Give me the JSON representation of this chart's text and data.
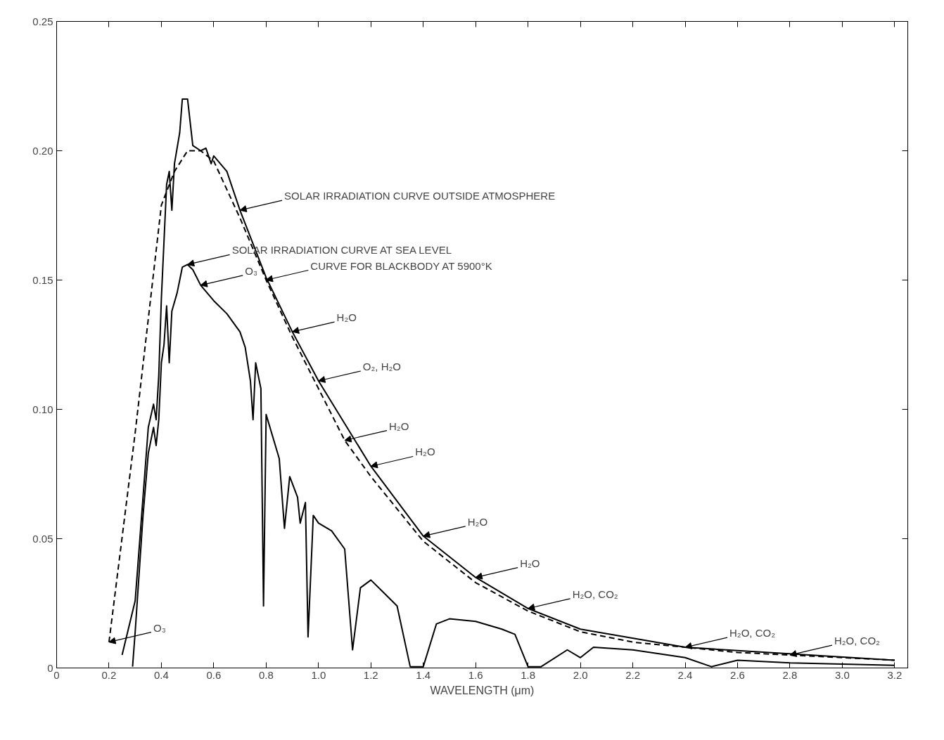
{
  "chart_data": {
    "type": "line",
    "xlabel": "WAVELENGTH (μm)",
    "xlim": [
      0,
      3.25
    ],
    "ylim": [
      0,
      0.25
    ],
    "xticks": [
      0,
      {
        "value": 0.2,
        "label": "0.2"
      },
      {
        "value": 0.4,
        "label": "0.4"
      },
      {
        "value": 0.6,
        "label": "0.6"
      },
      {
        "value": 0.8,
        "label": "0.8"
      },
      {
        "value": 1.0,
        "label": "1.0"
      },
      {
        "value": 1.2,
        "label": "1.2"
      },
      {
        "value": 1.4,
        "label": "1.4"
      },
      {
        "value": 1.6,
        "label": "1.6"
      },
      {
        "value": 1.8,
        "label": "1.8"
      },
      {
        "value": 2.0,
        "label": "2.0"
      },
      {
        "value": 2.2,
        "label": "2.2"
      },
      {
        "value": 2.4,
        "label": "2.4"
      },
      {
        "value": 2.6,
        "label": "2.6"
      },
      {
        "value": 2.8,
        "label": "2.8"
      },
      {
        "value": 3.0,
        "label": "3.0"
      },
      {
        "value": 3.2,
        "label": "3.2"
      }
    ],
    "yticks": [
      0,
      0.05,
      {
        "value": 0.1,
        "label": "0.10"
      },
      0.15,
      {
        "value": 0.2,
        "label": "0.20"
      },
      0.25
    ],
    "grid": false,
    "series": [
      {
        "color": "#000000",
        "line_style": "dashed",
        "x": [
          0.2,
          0.3,
          0.4,
          0.45,
          0.5,
          0.55,
          0.6,
          0.7,
          0.8,
          0.9,
          1.0,
          1.1,
          1.2,
          1.4,
          1.6,
          1.8,
          2.0,
          2.2,
          2.4,
          2.6,
          2.8,
          3.0,
          3.2
        ],
        "values": [
          0.01,
          0.091,
          0.179,
          0.192,
          0.2,
          0.2,
          0.196,
          0.174,
          0.15,
          0.128,
          0.108,
          0.088,
          0.074,
          0.049,
          0.033,
          0.022,
          0.014,
          0.01,
          0.008,
          0.006,
          0.005,
          0.004,
          0.003
        ]
      },
      {
        "color": "#000000",
        "line_style": "solid",
        "x": [
          0.25,
          0.3,
          0.35,
          0.37,
          0.38,
          0.39,
          0.4,
          0.42,
          0.43,
          0.44,
          0.45,
          0.47,
          0.48,
          0.5,
          0.52,
          0.55,
          0.57,
          0.59,
          0.6,
          0.65,
          0.7,
          0.8,
          0.9,
          1.0,
          1.2,
          1.4,
          1.6,
          1.8,
          2.0,
          2.4,
          3.2
        ],
        "values": [
          0.005,
          0.026,
          0.093,
          0.102,
          0.096,
          0.113,
          0.143,
          0.187,
          0.192,
          0.177,
          0.195,
          0.207,
          0.22,
          0.22,
          0.202,
          0.2,
          0.201,
          0.195,
          0.198,
          0.192,
          0.177,
          0.151,
          0.13,
          0.111,
          0.078,
          0.051,
          0.035,
          0.023,
          0.015,
          0.008,
          0.003
        ]
      },
      {
        "color": "#000000",
        "line_style": "solid",
        "x": [
          0.29,
          0.3,
          0.33,
          0.35,
          0.37,
          0.38,
          0.39,
          0.4,
          0.41,
          0.42,
          0.43,
          0.44,
          0.46,
          0.48,
          0.5,
          0.52,
          0.55,
          0.6,
          0.65,
          0.7,
          0.72,
          0.74,
          0.75,
          0.76,
          0.78,
          0.79,
          0.8,
          0.85,
          0.87,
          0.89,
          0.92,
          0.93,
          0.95,
          0.96,
          0.98,
          1.0,
          1.05,
          1.1,
          1.13,
          1.16,
          1.2,
          1.25,
          1.3,
          1.35,
          1.4,
          1.45,
          1.5,
          1.6,
          1.7,
          1.75,
          1.8,
          1.85,
          1.95,
          2.0,
          2.05,
          2.2,
          2.4,
          2.5,
          2.6,
          2.8,
          3.2
        ],
        "values": [
          0.0005,
          0.014,
          0.059,
          0.083,
          0.093,
          0.086,
          0.096,
          0.118,
          0.125,
          0.14,
          0.118,
          0.138,
          0.145,
          0.155,
          0.156,
          0.154,
          0.148,
          0.142,
          0.137,
          0.13,
          0.124,
          0.111,
          0.096,
          0.118,
          0.108,
          0.024,
          0.098,
          0.081,
          0.054,
          0.074,
          0.066,
          0.056,
          0.064,
          0.012,
          0.059,
          0.056,
          0.053,
          0.046,
          0.007,
          0.031,
          0.034,
          0.029,
          0.024,
          0.0005,
          0.0005,
          0.017,
          0.019,
          0.018,
          0.015,
          0.013,
          0.0005,
          0.0005,
          0.007,
          0.004,
          0.008,
          0.007,
          0.004,
          0.0005,
          0.003,
          0.002,
          0.001
        ]
      }
    ],
    "annotations": [
      {
        "text": "SOLAR IRRADIATION CURVE OUTSIDE ATMOSPHERE",
        "x": 0.7,
        "y": 0.177
      },
      {
        "text": "SOLAR IRRADIATION CURVE AT SEA LEVEL",
        "x": 0.5,
        "y": 0.156
      },
      {
        "text": "CURVE FOR BLACKBODY AT 5900°K",
        "x": 0.8,
        "y": 0.15
      },
      {
        "text": "O₃",
        "x": 0.55,
        "y": 0.148
      },
      {
        "text": "H₂O",
        "x": 0.9,
        "y": 0.13
      },
      {
        "text": "O₂, H₂O",
        "x": 1.0,
        "y": 0.111
      },
      {
        "text": "H₂O",
        "x": 1.1,
        "y": 0.088
      },
      {
        "text": "H₂O",
        "x": 1.2,
        "y": 0.078
      },
      {
        "text": "H₂O",
        "x": 1.4,
        "y": 0.051
      },
      {
        "text": "H₂O",
        "x": 1.6,
        "y": 0.035
      },
      {
        "text": "H₂O, CO₂",
        "x": 1.8,
        "y": 0.023
      },
      {
        "text": "H₂O, CO₂",
        "x": 2.4,
        "y": 0.008
      },
      {
        "text": "H₂O, CO₂",
        "x": 2.8,
        "y": 0.005
      },
      {
        "text": "O₃",
        "x": 0.2,
        "y": 0.01
      }
    ]
  }
}
